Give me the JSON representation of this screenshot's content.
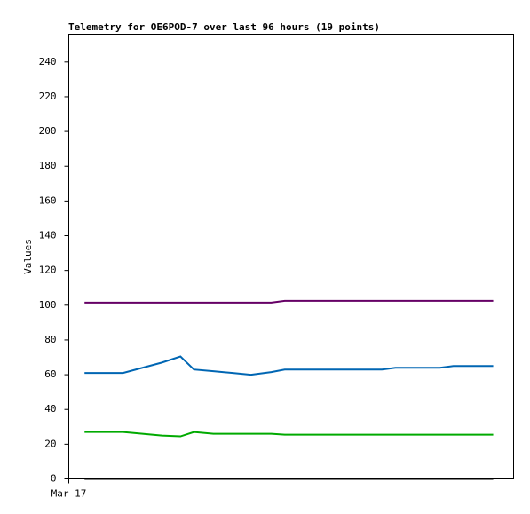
{
  "chart_data": {
    "type": "line",
    "title": "Telemetry for OE6POD-7 over last 96 hours (19 points)",
    "y_label": "Values",
    "x": [
      3.4,
      11.7,
      15.9,
      20.1,
      24.1,
      27.0,
      31.2,
      35.4,
      39.3,
      43.7,
      46.6,
      54.2,
      61.9,
      67.6,
      70.5,
      75.3,
      80.1,
      83.0,
      91.6
    ],
    "xlim": [
      0,
      96
    ],
    "xticks": [
      {
        "value": 0,
        "label": "Mar 17"
      }
    ],
    "ylim": [
      0,
      256
    ],
    "yticks": [
      0,
      20,
      40,
      60,
      80,
      100,
      120,
      140,
      160,
      180,
      200,
      220,
      240
    ],
    "grid": false,
    "series": [
      {
        "color": "#660066",
        "values": [
          101.5,
          101.5,
          101.5,
          101.5,
          101.5,
          101.5,
          101.5,
          101.5,
          101.5,
          101.5,
          102.5,
          102.5,
          102.5,
          102.5,
          102.5,
          102.5,
          102.5,
          102.5,
          102.5
        ]
      },
      {
        "color": "#0066b3",
        "values": [
          61,
          61,
          64,
          67,
          70.5,
          63,
          62,
          61,
          60,
          61.5,
          63,
          63,
          63,
          63,
          64,
          64,
          64,
          65,
          65
        ]
      },
      {
        "color": "#00aa00",
        "values": [
          27,
          27,
          26,
          25,
          24.5,
          27,
          26,
          26,
          26,
          26,
          25.5,
          25.5,
          25.5,
          25.5,
          25.5,
          25.5,
          25.5,
          25.5,
          25.5
        ]
      },
      {
        "color": "#000000",
        "values": [
          0,
          0,
          0,
          0,
          0,
          0,
          0,
          0,
          0,
          0,
          0,
          0,
          0,
          0,
          0,
          0,
          0,
          0,
          0
        ]
      }
    ]
  }
}
